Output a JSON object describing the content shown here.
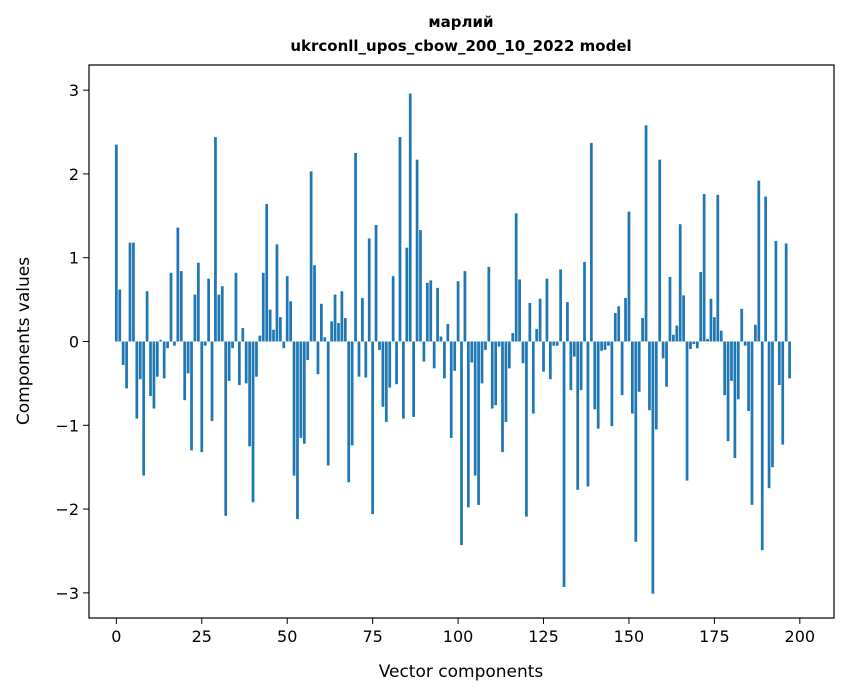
{
  "chart_data": {
    "type": "bar",
    "title_line1": "марлий",
    "title_line2": "ukrconll_upos_cbow_200_10_2022 model",
    "xlabel": "Vector components",
    "ylabel": "Components values",
    "xlim": [
      -8,
      210
    ],
    "ylim": [
      -3.3,
      3.3
    ],
    "xticks": [
      0,
      25,
      50,
      75,
      100,
      125,
      150,
      175,
      200
    ],
    "yticks": [
      -3,
      -2,
      -1,
      0,
      1,
      2,
      3
    ],
    "xtick_labels": [
      "0",
      "25",
      "50",
      "75",
      "100",
      "125",
      "150",
      "175",
      "200"
    ],
    "ytick_labels": [
      "−3",
      "−2",
      "−1",
      "0",
      "1",
      "2",
      "3"
    ],
    "bar_color": "#1f77b4",
    "grid": false,
    "values": [
      2.35,
      0.62,
      -0.28,
      -0.56,
      1.18,
      1.18,
      -0.92,
      -0.45,
      -1.6,
      0.6,
      -0.65,
      -0.8,
      -0.42,
      0.02,
      -0.44,
      -0.08,
      0.82,
      -0.05,
      1.36,
      0.84,
      -0.7,
      -0.38,
      -1.3,
      0.56,
      0.94,
      -1.32,
      -0.05,
      0.75,
      -0.95,
      2.44,
      0.56,
      0.66,
      -2.08,
      -0.47,
      -0.08,
      0.82,
      -0.52,
      0.16,
      -0.5,
      -1.25,
      -1.92,
      -0.42,
      0.07,
      0.82,
      1.64,
      0.38,
      0.14,
      1.16,
      0.29,
      -0.08,
      0.78,
      0.48,
      -1.6,
      -2.12,
      -1.15,
      -1.22,
      -0.22,
      2.03,
      0.91,
      -0.39,
      0.45,
      0.05,
      -1.48,
      0.24,
      0.56,
      0.22,
      0.6,
      0.28,
      -1.68,
      -1.24,
      2.25,
      -0.42,
      0.52,
      -0.43,
      1.23,
      -2.06,
      1.39,
      -0.1,
      -0.78,
      -0.96,
      -0.55,
      0.78,
      -0.51,
      2.44,
      -0.92,
      1.12,
      2.96,
      -0.9,
      2.17,
      1.33,
      -0.24,
      0.7,
      0.73,
      -0.32,
      0.64,
      0.06,
      -0.44,
      0.21,
      -1.15,
      -0.35,
      0.72,
      -2.43,
      0.84,
      -1.98,
      -0.25,
      -1.6,
      -1.95,
      -0.5,
      -0.1,
      0.89,
      -0.8,
      -0.76,
      -0.06,
      -1.32,
      -0.96,
      -0.32,
      0.1,
      1.53,
      0.74,
      -0.26,
      -2.09,
      0.46,
      -0.86,
      0.15,
      0.51,
      -0.36,
      0.75,
      -0.45,
      -0.05,
      -0.05,
      0.86,
      -2.93,
      0.47,
      -0.58,
      -0.18,
      -1.77,
      -0.58,
      0.95,
      -1.73,
      2.37,
      -0.81,
      -1.04,
      -0.11,
      -0.1,
      -0.05,
      -1.01,
      0.34,
      0.42,
      -0.64,
      0.52,
      1.55,
      -0.86,
      -2.39,
      -0.6,
      0.28,
      2.58,
      -0.82,
      -3.01,
      -1.05,
      2.17,
      -0.2,
      -0.54,
      0.77,
      0.08,
      0.19,
      1.4,
      0.55,
      -1.66,
      -0.09,
      -0.03,
      -0.08,
      0.83,
      1.76,
      0.03,
      0.51,
      0.29,
      1.75,
      0.13,
      -0.64,
      -1.19,
      -0.47,
      -1.39,
      -0.69,
      0.39,
      -0.05,
      -0.83,
      -1.95,
      0.2,
      1.92,
      -2.49,
      1.73,
      -1.75,
      -1.5,
      1.2,
      -0.52,
      -1.23,
      1.17,
      -0.44
    ]
  }
}
